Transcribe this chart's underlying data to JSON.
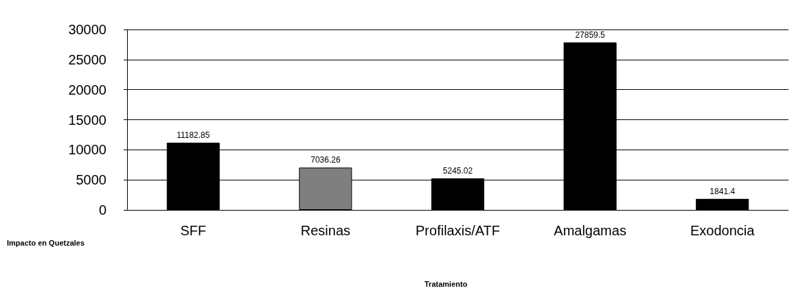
{
  "chart_data": {
    "type": "bar",
    "annotations": [
      "Tratamiento"
    ],
    "ylabel": "Impacto en Quetzales",
    "categories": [
      "SFF",
      "Resinas",
      "Profilaxis/ATF",
      "Amalgamas",
      "Exodoncia"
    ],
    "values": [
      11182.85,
      7036.26,
      5245.02,
      27859.5,
      1841.4
    ],
    "colors": [
      "#000000",
      "#7f7f7f",
      "#000000",
      "#000000",
      "#000000"
    ],
    "ylim": [
      0,
      30000
    ],
    "yticks": [
      0,
      5000,
      10000,
      15000,
      20000,
      25000,
      30000
    ],
    "grid": "y",
    "data_labels": true
  }
}
